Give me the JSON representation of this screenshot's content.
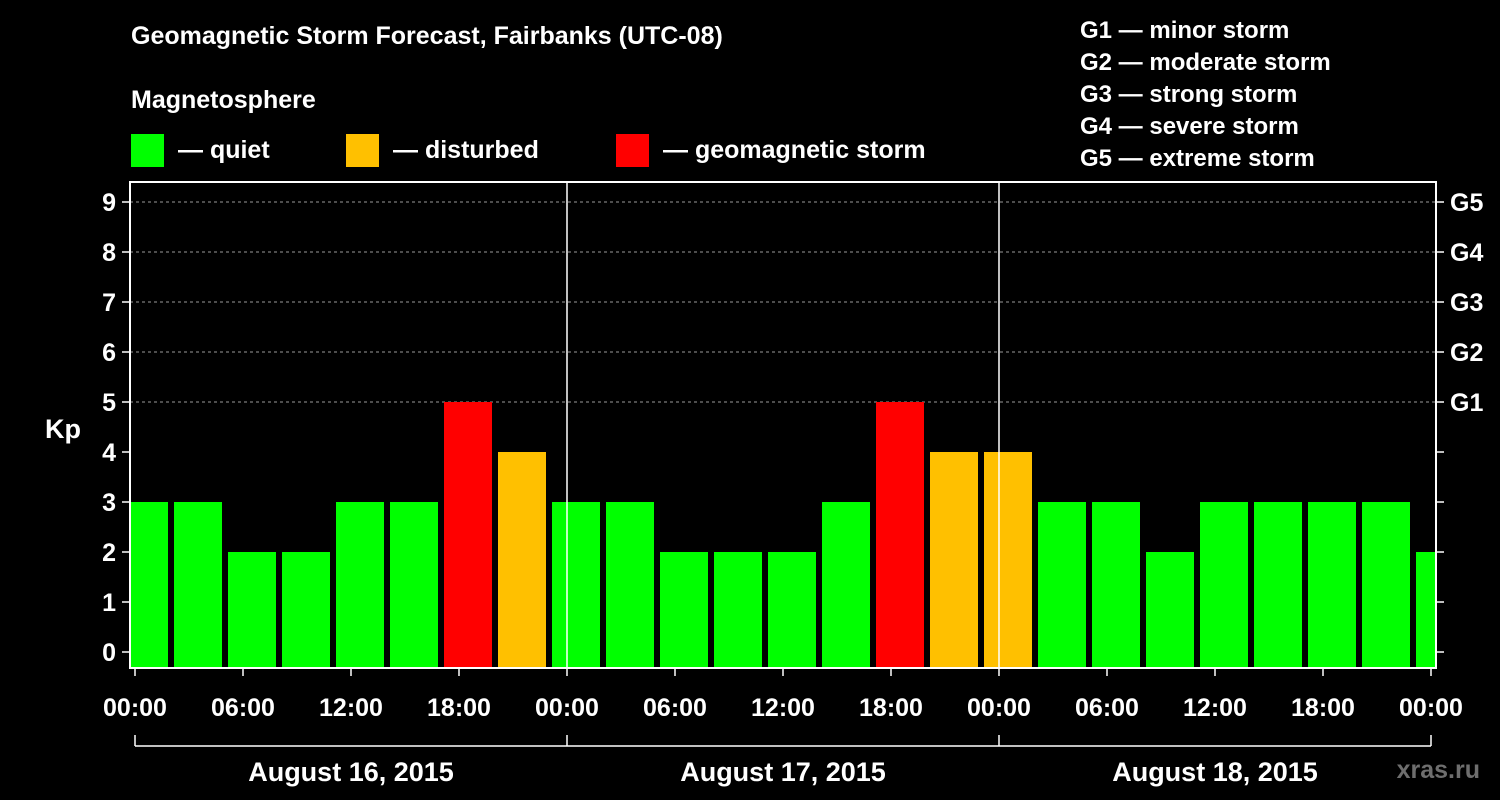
{
  "title": "Geomagnetic Storm Forecast, Fairbanks (UTC-08)",
  "subtitle": "Magnetosphere",
  "legend": [
    {
      "label": "— quiet",
      "color": "#00ff00"
    },
    {
      "label": "— disturbed",
      "color": "#ffc000"
    },
    {
      "label": "— geomagnetic storm",
      "color": "#ff0000"
    }
  ],
  "g_levels": [
    "G1 — minor storm",
    "G2 — moderate storm",
    "G3 — strong storm",
    "G4 — severe storm",
    "G5 — extreme storm"
  ],
  "watermark": "xras.ru",
  "chart_data": {
    "type": "bar",
    "title": "Geomagnetic Storm Forecast, Fairbanks (UTC-08)",
    "ylabel": "Kp",
    "ylim": [
      0,
      9
    ],
    "y_ticks": [
      "0",
      "1",
      "2",
      "3",
      "4",
      "5",
      "6",
      "7",
      "8",
      "9"
    ],
    "right_ticks": [
      {
        "kp": 5,
        "label": "G1"
      },
      {
        "kp": 6,
        "label": "G2"
      },
      {
        "kp": 7,
        "label": "G3"
      },
      {
        "kp": 8,
        "label": "G4"
      },
      {
        "kp": 9,
        "label": "G5"
      }
    ],
    "x_tick_labels": [
      "00:00",
      "06:00",
      "12:00",
      "18:00",
      "00:00",
      "06:00",
      "12:00",
      "18:00",
      "00:00",
      "06:00",
      "12:00",
      "18:00",
      "00:00"
    ],
    "days": [
      "August 16, 2015",
      "August 17, 2015",
      "August 18, 2015"
    ],
    "x_range_hours": [
      0,
      72
    ],
    "grid": true,
    "level_colors": {
      "quiet": "#00ff00",
      "disturbed": "#ffc000",
      "storm": "#ff0000"
    },
    "bars": [
      {
        "start": -1,
        "end": 2,
        "kp": 3,
        "level": "quiet"
      },
      {
        "start": 2,
        "end": 5,
        "kp": 3,
        "level": "quiet"
      },
      {
        "start": 5,
        "end": 8,
        "kp": 2,
        "level": "quiet"
      },
      {
        "start": 8,
        "end": 11,
        "kp": 2,
        "level": "quiet"
      },
      {
        "start": 11,
        "end": 14,
        "kp": 3,
        "level": "quiet"
      },
      {
        "start": 14,
        "end": 17,
        "kp": 3,
        "level": "quiet"
      },
      {
        "start": 17,
        "end": 20,
        "kp": 5,
        "level": "storm"
      },
      {
        "start": 20,
        "end": 23,
        "kp": 4,
        "level": "disturbed"
      },
      {
        "start": 23,
        "end": 26,
        "kp": 3,
        "level": "quiet"
      },
      {
        "start": 26,
        "end": 29,
        "kp": 3,
        "level": "quiet"
      },
      {
        "start": 29,
        "end": 32,
        "kp": 2,
        "level": "quiet"
      },
      {
        "start": 32,
        "end": 35,
        "kp": 2,
        "level": "quiet"
      },
      {
        "start": 35,
        "end": 38,
        "kp": 2,
        "level": "quiet"
      },
      {
        "start": 38,
        "end": 41,
        "kp": 3,
        "level": "quiet"
      },
      {
        "start": 41,
        "end": 44,
        "kp": 5,
        "level": "storm"
      },
      {
        "start": 44,
        "end": 47,
        "kp": 4,
        "level": "disturbed"
      },
      {
        "start": 47,
        "end": 50,
        "kp": 4,
        "level": "disturbed"
      },
      {
        "start": 50,
        "end": 53,
        "kp": 3,
        "level": "quiet"
      },
      {
        "start": 53,
        "end": 56,
        "kp": 3,
        "level": "quiet"
      },
      {
        "start": 56,
        "end": 59,
        "kp": 2,
        "level": "quiet"
      },
      {
        "start": 59,
        "end": 62,
        "kp": 3,
        "level": "quiet"
      },
      {
        "start": 62,
        "end": 65,
        "kp": 3,
        "level": "quiet"
      },
      {
        "start": 65,
        "end": 68,
        "kp": 3,
        "level": "quiet"
      },
      {
        "start": 68,
        "end": 71,
        "kp": 3,
        "level": "quiet"
      },
      {
        "start": 71,
        "end": 74,
        "kp": 2,
        "level": "quiet"
      }
    ]
  }
}
